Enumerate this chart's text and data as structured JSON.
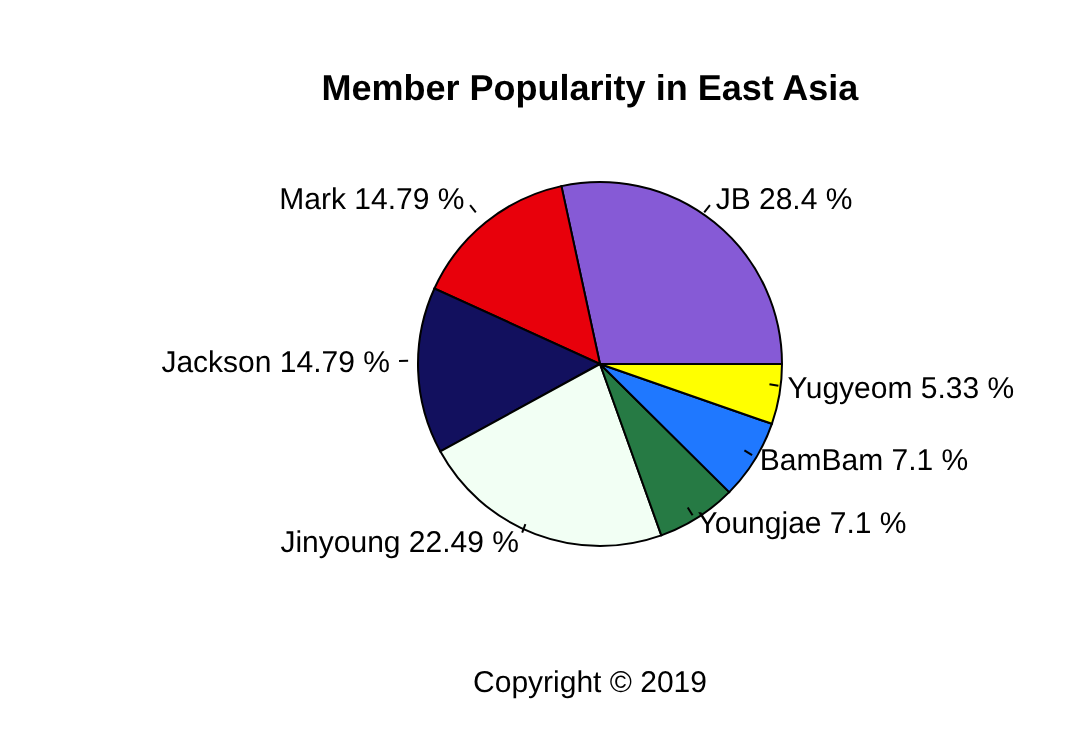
{
  "chart_data": {
    "type": "pie",
    "title": "Member Popularity in East Asia",
    "categories": [
      "JB",
      "Mark",
      "Jackson",
      "Jinyoung",
      "Youngjae",
      "BamBam",
      "Yugyeom"
    ],
    "values": [
      28.4,
      14.79,
      14.79,
      22.49,
      7.1,
      7.1,
      5.33
    ],
    "value_labels": [
      "28.4 %",
      "14.79 %",
      "14.79 %",
      "22.49 %",
      "7.1 %",
      "7.1 %",
      "5.33 %"
    ],
    "colors": [
      "#865ad6",
      "#e8000b",
      "#12105e",
      "#f2fff4",
      "#267a44",
      "#1f78ff",
      "#ffff00"
    ],
    "annotations": [
      "Copyright © 2019"
    ]
  }
}
